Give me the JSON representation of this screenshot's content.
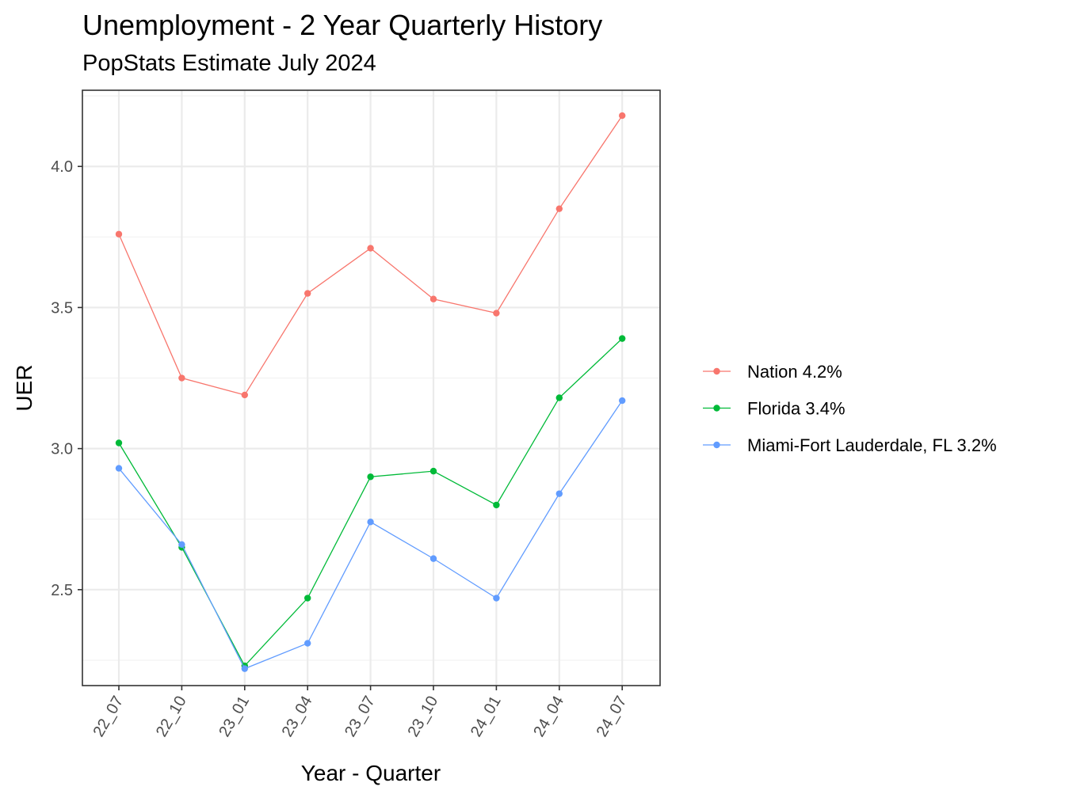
{
  "chart_data": {
    "type": "line",
    "title": "Unemployment - 2 Year Quarterly History",
    "subtitle": "PopStats Estimate July 2024",
    "xlabel": "Year - Quarter",
    "ylabel": "UER",
    "categories": [
      "22_07",
      "22_10",
      "23_01",
      "23_04",
      "23_07",
      "23_10",
      "24_01",
      "24_04",
      "24_07"
    ],
    "ylim": [
      2.16,
      4.27
    ],
    "yticks": [
      2.5,
      3.0,
      3.5,
      4.0
    ],
    "ytick_labels": [
      "2.5",
      "3.0",
      "3.5",
      "4.0"
    ],
    "grid": true,
    "legend_position": "right",
    "series": [
      {
        "name": "Nation 4.2%",
        "color": "#F8766D",
        "values": [
          3.76,
          3.25,
          3.19,
          3.55,
          3.71,
          3.53,
          3.48,
          3.85,
          4.18
        ]
      },
      {
        "name": "Florida 3.4%",
        "color": "#00BA38",
        "values": [
          3.02,
          2.65,
          2.23,
          2.47,
          2.9,
          2.92,
          2.8,
          3.18,
          3.39
        ]
      },
      {
        "name": "Miami-Fort Lauderdale, FL 3.2%",
        "color": "#619CFF",
        "values": [
          2.93,
          2.66,
          2.22,
          2.31,
          2.74,
          2.61,
          2.47,
          2.84,
          3.17
        ]
      }
    ]
  }
}
